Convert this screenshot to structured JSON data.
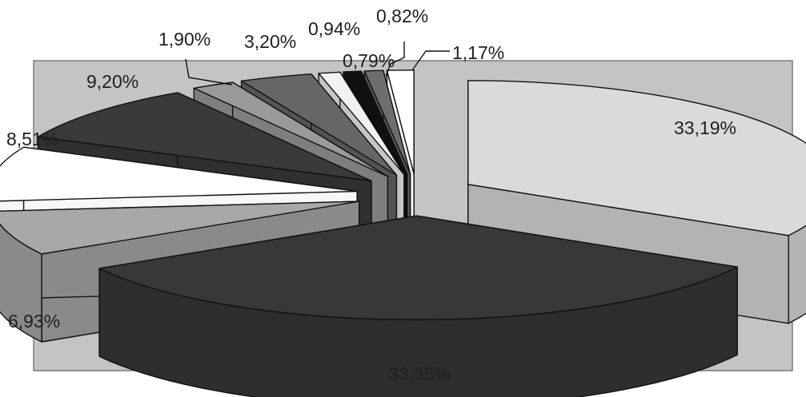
{
  "chart_data": {
    "type": "pie",
    "style": "3d-exploded",
    "title": "",
    "slices": [
      {
        "value": 33.19,
        "label": "33,19%",
        "color": "#dadada"
      },
      {
        "value": 33.35,
        "label": "33,35%",
        "color": "#383838"
      },
      {
        "value": 6.93,
        "label": "6,93%",
        "color": "#a8a8a8"
      },
      {
        "value": 8.51,
        "label": "8,51%",
        "color": "#ffffff"
      },
      {
        "value": 9.2,
        "label": "9,20%",
        "color": "#3a3a3a"
      },
      {
        "value": 1.9,
        "label": "1,90%",
        "color": "#9a9a9a"
      },
      {
        "value": 3.2,
        "label": "3,20%",
        "color": "#666666"
      },
      {
        "value": 0.94,
        "label": "0,94%",
        "color": "#f2f2f2"
      },
      {
        "value": 0.79,
        "label": "0,79%",
        "color": "#101010"
      },
      {
        "value": 0.82,
        "label": "0,82%",
        "color": "#6e6e6e"
      },
      {
        "value": 1.17,
        "label": "1,17%",
        "color": "#ffffff"
      }
    ],
    "plot_background": "#c4c4c4",
    "legend": "none"
  }
}
